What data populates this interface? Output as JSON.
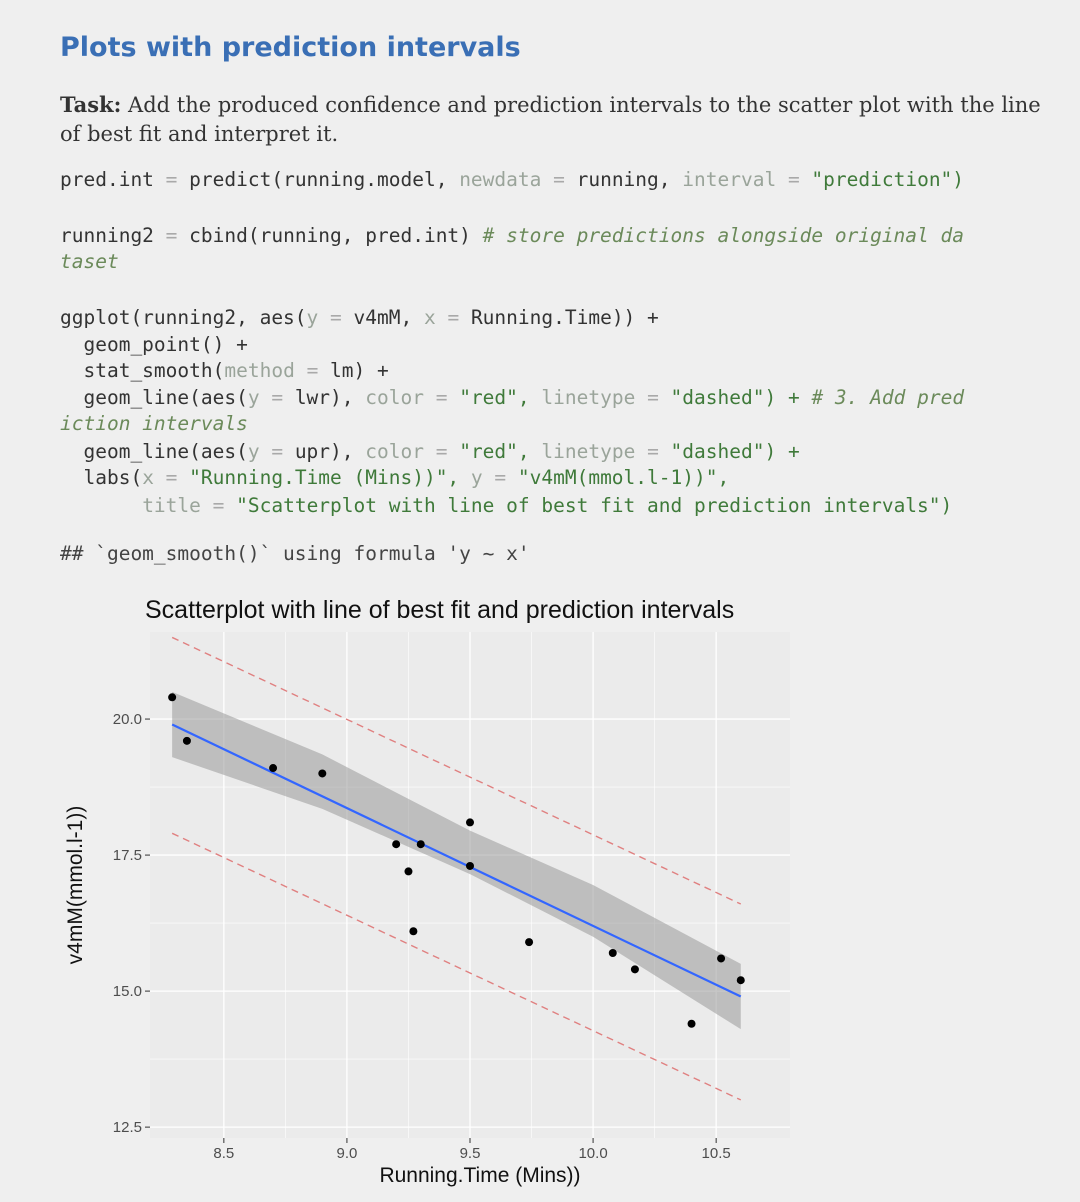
{
  "heading": "Plots with prediction intervals",
  "task": {
    "label": "Task:",
    "text": " Add the produced confidence and prediction intervals to the scatter plot with the line of best fit and interpret it."
  },
  "code": {
    "l1_a": "pred.int ",
    "l1_b": "= ",
    "l1_c": "predict(running.model, ",
    "l1_d": "newdata ",
    "l1_e": "= ",
    "l1_f": "running, ",
    "l1_g": "interval ",
    "l1_h": "= ",
    "l1_i": "\"prediction\")",
    "l2_a": "running2 ",
    "l2_b": "= ",
    "l2_c": "cbind(running, pred.int) ",
    "l2_d": "# store predictions alongside original da",
    "l3_a": "taset",
    "g1_a": "ggplot(running2, aes(",
    "g1_b": "y ",
    "g1_c": "= ",
    "g1_d": "v4mM, ",
    "g1_e": "x ",
    "g1_f": "= ",
    "g1_g": "Running.Time)) +",
    "g2": "  geom_point() +",
    "g3_a": "  stat_smooth(",
    "g3_b": "method ",
    "g3_c": "= ",
    "g3_d": "lm) +",
    "g4_a": "  geom_line(aes(",
    "g4_b": "y ",
    "g4_c": "= ",
    "g4_d": "lwr), ",
    "g4_e": "color ",
    "g4_f": "= ",
    "g4_g": "\"red\", ",
    "g4_h": "linetype ",
    "g4_i": "= ",
    "g4_j": "\"dashed\") + ",
    "g4_k": "# 3. Add pred",
    "g5": "iction intervals",
    "g6_a": "  geom_line(aes(",
    "g6_b": "y ",
    "g6_c": "= ",
    "g6_d": "upr), ",
    "g6_e": "color ",
    "g6_f": "= ",
    "g6_g": "\"red\", ",
    "g6_h": "linetype ",
    "g6_i": "= ",
    "g6_j": "\"dashed\") +",
    "g7_a": "  labs(",
    "g7_b": "x ",
    "g7_c": "= ",
    "g7_d": "\"Running.Time (Mins))\", ",
    "g7_e": "y ",
    "g7_f": "= ",
    "g7_g": "\"v4mM(mmol.l-1))\",",
    "g8_a": "       ",
    "g8_b": "title ",
    "g8_c": "= ",
    "g8_d": "\"Scatterplot with line of best fit and prediction intervals\")"
  },
  "output": "## `geom_smooth()` using formula 'y ~ x'",
  "chart_data": {
    "type": "scatter",
    "title": "Scatterplot with line of best fit and prediction intervals",
    "xlabel": "Running.Time (Mins))",
    "ylabel": "v4mM(mmol.l-1))",
    "xlim": [
      8.2,
      10.8
    ],
    "ylim": [
      12.3,
      21.6
    ],
    "x_ticks": [
      "8.5",
      "9.0",
      "9.5",
      "10.0",
      "10.5"
    ],
    "x_tick_values": [
      8.5,
      9.0,
      9.5,
      10.0,
      10.5
    ],
    "y_ticks": [
      "12.5",
      "15.0",
      "17.5",
      "20.0"
    ],
    "y_tick_values": [
      12.5,
      15.0,
      17.5,
      20.0
    ],
    "points": [
      {
        "x": 8.29,
        "y": 20.4
      },
      {
        "x": 8.35,
        "y": 19.6
      },
      {
        "x": 8.7,
        "y": 19.1
      },
      {
        "x": 8.9,
        "y": 19.0
      },
      {
        "x": 9.2,
        "y": 17.7
      },
      {
        "x": 9.25,
        "y": 17.2
      },
      {
        "x": 9.3,
        "y": 17.7
      },
      {
        "x": 9.27,
        "y": 16.1
      },
      {
        "x": 9.5,
        "y": 18.1
      },
      {
        "x": 9.5,
        "y": 17.3
      },
      {
        "x": 9.74,
        "y": 15.9
      },
      {
        "x": 10.08,
        "y": 15.7
      },
      {
        "x": 10.17,
        "y": 15.4
      },
      {
        "x": 10.4,
        "y": 14.4
      },
      {
        "x": 10.52,
        "y": 15.6
      },
      {
        "x": 10.6,
        "y": 15.2
      }
    ],
    "fit": {
      "x": [
        8.29,
        10.6
      ],
      "y": [
        19.9,
        14.9
      ]
    },
    "confidence_band": {
      "x": [
        8.29,
        8.9,
        9.5,
        10.0,
        10.6
      ],
      "lower": [
        19.3,
        18.35,
        17.15,
        16.0,
        14.3
      ],
      "upper": [
        20.5,
        19.35,
        17.95,
        16.95,
        15.5
      ]
    },
    "prediction_interval": {
      "x": [
        8.29,
        10.6
      ],
      "lower": [
        17.9,
        13.0
      ],
      "upper": [
        21.5,
        16.6
      ]
    },
    "colors": {
      "points": "#000000",
      "fit": "#3366ff",
      "band": "#999999",
      "interval": "#e08080",
      "panel": "#ebebeb",
      "grid": "#ffffff"
    },
    "grid": true
  }
}
